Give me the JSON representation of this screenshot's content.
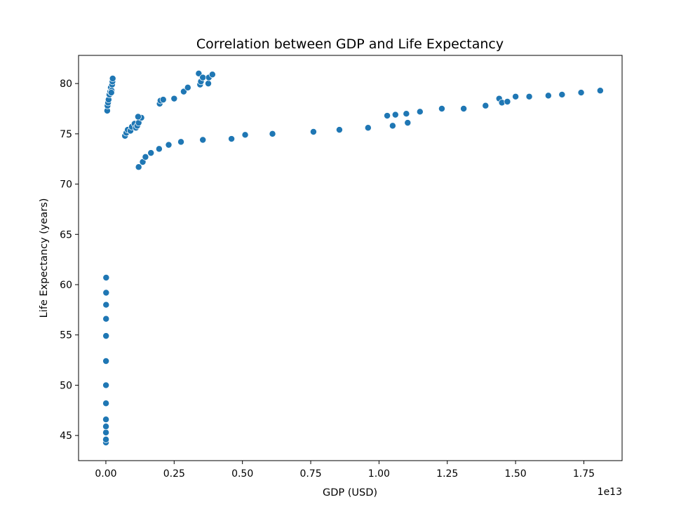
{
  "chart_data": {
    "type": "scatter",
    "title": "Correlation between GDP and Life Expectancy",
    "xlabel": "GDP (USD)",
    "ylabel": "Life Expectancy (years)",
    "x_offset_label": "1e13",
    "xlim": [
      -1000000000000.0,
      18900000000000.0
    ],
    "ylim": [
      42.5,
      82.8
    ],
    "xticks": [
      0,
      2500000000000.0,
      5000000000000.0,
      7500000000000.0,
      10000000000000.0,
      12500000000000.0,
      15000000000000.0,
      17500000000000.0
    ],
    "xtick_labels": [
      "0.00",
      "0.25",
      "0.50",
      "0.75",
      "1.00",
      "1.25",
      "1.50",
      "1.75"
    ],
    "yticks": [
      45,
      50,
      55,
      60,
      65,
      70,
      75,
      80
    ],
    "ytick_labels": [
      "45",
      "50",
      "55",
      "60",
      "65",
      "70",
      "75",
      "80"
    ],
    "grid": false,
    "marker_color": "#1f77b4",
    "points": [
      {
        "x": 50000000000.0,
        "y": 77.3
      },
      {
        "x": 60000000000.0,
        "y": 77.8
      },
      {
        "x": 80000000000.0,
        "y": 78.1
      },
      {
        "x": 100000000000.0,
        "y": 78.4
      },
      {
        "x": 130000000000.0,
        "y": 78.9
      },
      {
        "x": 160000000000.0,
        "y": 79.2
      },
      {
        "x": 180000000000.0,
        "y": 79.6
      },
      {
        "x": 210000000000.0,
        "y": 79.3
      },
      {
        "x": 230000000000.0,
        "y": 79.9
      },
      {
        "x": 240000000000.0,
        "y": 80.2
      },
      {
        "x": 250000000000.0,
        "y": 80.5
      },
      {
        "x": 200000000000.0,
        "y": 79.1
      },
      {
        "x": 700000000000.0,
        "y": 74.8
      },
      {
        "x": 750000000000.0,
        "y": 75.1
      },
      {
        "x": 800000000000.0,
        "y": 75.4
      },
      {
        "x": 900000000000.0,
        "y": 75.3
      },
      {
        "x": 950000000000.0,
        "y": 75.7
      },
      {
        "x": 1050000000000.0,
        "y": 76.0
      },
      {
        "x": 1100000000000.0,
        "y": 75.6
      },
      {
        "x": 1150000000000.0,
        "y": 75.8
      },
      {
        "x": 1200000000000.0,
        "y": 76.1
      },
      {
        "x": 1300000000000.0,
        "y": 76.6
      },
      {
        "x": 1180000000000.0,
        "y": 76.7
      },
      {
        "x": 1970000000000.0,
        "y": 78.0
      },
      {
        "x": 2000000000000.0,
        "y": 78.3
      },
      {
        "x": 2100000000000.0,
        "y": 78.4
      },
      {
        "x": 2500000000000.0,
        "y": 78.5
      },
      {
        "x": 2850000000000.0,
        "y": 79.2
      },
      {
        "x": 3000000000000.0,
        "y": 79.6
      },
      {
        "x": 3400000000000.0,
        "y": 81.0
      },
      {
        "x": 3450000000000.0,
        "y": 79.9
      },
      {
        "x": 3480000000000.0,
        "y": 80.2
      },
      {
        "x": 3550000000000.0,
        "y": 80.6
      },
      {
        "x": 3750000000000.0,
        "y": 80.0
      },
      {
        "x": 3770000000000.0,
        "y": 80.6
      },
      {
        "x": 3900000000000.0,
        "y": 80.9
      },
      {
        "x": 1200000000000.0,
        "y": 71.7
      },
      {
        "x": 1350000000000.0,
        "y": 72.2
      },
      {
        "x": 1450000000000.0,
        "y": 72.7
      },
      {
        "x": 1650000000000.0,
        "y": 73.1
      },
      {
        "x": 1950000000000.0,
        "y": 73.5
      },
      {
        "x": 2300000000000.0,
        "y": 73.9
      },
      {
        "x": 2750000000000.0,
        "y": 74.2
      },
      {
        "x": 3550000000000.0,
        "y": 74.4
      },
      {
        "x": 4600000000000.0,
        "y": 74.5
      },
      {
        "x": 5100000000000.0,
        "y": 74.9
      },
      {
        "x": 6100000000000.0,
        "y": 75.0
      },
      {
        "x": 7600000000000.0,
        "y": 75.2
      },
      {
        "x": 8550000000000.0,
        "y": 75.4
      },
      {
        "x": 9600000000000.0,
        "y": 75.6
      },
      {
        "x": 10300000000000.0,
        "y": 76.8
      },
      {
        "x": 10500000000000.0,
        "y": 75.8
      },
      {
        "x": 10600000000000.0,
        "y": 76.9
      },
      {
        "x": 11000000000000.0,
        "y": 77.0
      },
      {
        "x": 11050000000000.0,
        "y": 76.1
      },
      {
        "x": 11500000000000.0,
        "y": 77.2
      },
      {
        "x": 12300000000000.0,
        "y": 77.5
      },
      {
        "x": 13100000000000.0,
        "y": 77.5
      },
      {
        "x": 13900000000000.0,
        "y": 77.8
      },
      {
        "x": 14400000000000.0,
        "y": 78.5
      },
      {
        "x": 14500000000000.0,
        "y": 78.1
      },
      {
        "x": 14700000000000.0,
        "y": 78.2
      },
      {
        "x": 15000000000000.0,
        "y": 78.7
      },
      {
        "x": 15500000000000.0,
        "y": 78.7
      },
      {
        "x": 16200000000000.0,
        "y": 78.8
      },
      {
        "x": 16700000000000.0,
        "y": 78.9
      },
      {
        "x": 17400000000000.0,
        "y": 79.1
      },
      {
        "x": 18100000000000.0,
        "y": 79.3
      },
      {
        "x": 2000000000.0,
        "y": 44.3
      },
      {
        "x": 2000000000.0,
        "y": 44.6
      },
      {
        "x": 3000000000.0,
        "y": 45.3
      },
      {
        "x": 3000000000.0,
        "y": 45.9
      },
      {
        "x": 3000000000.0,
        "y": 46.6
      },
      {
        "x": 4000000000.0,
        "y": 48.2
      },
      {
        "x": 4000000000.0,
        "y": 50.0
      },
      {
        "x": 5000000000.0,
        "y": 52.4
      },
      {
        "x": 6000000000.0,
        "y": 54.9
      },
      {
        "x": 7000000000.0,
        "y": 56.6
      },
      {
        "x": 8000000000.0,
        "y": 58.0
      },
      {
        "x": 9000000000.0,
        "y": 59.2
      },
      {
        "x": 10000000000.0,
        "y": 60.7
      }
    ]
  }
}
